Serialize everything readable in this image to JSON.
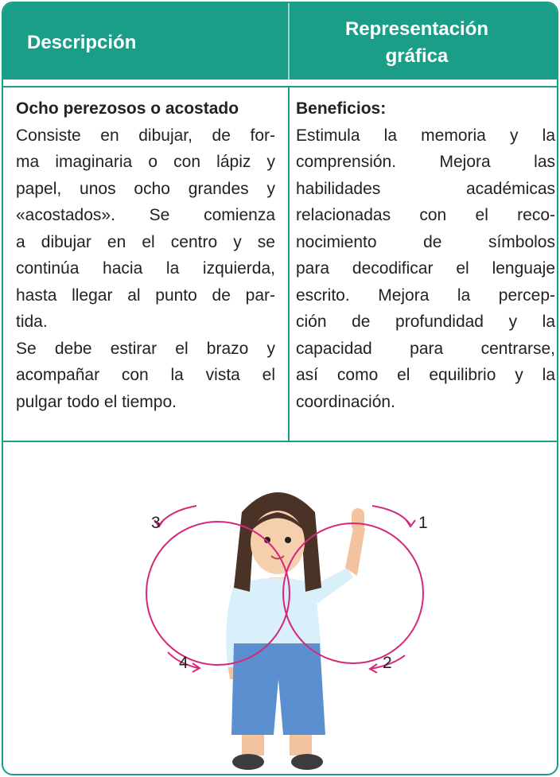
{
  "header": {
    "col1": "Descripción",
    "col2_lines": [
      "Representación",
      "gráfica"
    ]
  },
  "left": {
    "title": "Ocho perezosos o acostado",
    "paragraphs": [
      [
        "Consiste en dibujar, de for-",
        "ma imaginaria o con lápiz y",
        "papel, unos ocho grandes y",
        "«acostados». Se comienza",
        "a dibujar en el centro y se",
        "continúa hacia la izquierda,",
        "hasta llegar al punto de par-",
        "tida."
      ],
      [
        "Se debe estirar el brazo y",
        "acompañar con la vista el",
        "pulgar todo el tiempo."
      ]
    ]
  },
  "right": {
    "title": "Beneficios:",
    "paragraphs": [
      [
        "Estimula la memoria y la",
        "comprensión. Mejora las",
        "habilidades académicas",
        "relacionadas con el reco-",
        "nocimiento de símbolos",
        "para decodificar el lenguaje",
        "escrito. Mejora la percep-",
        "ción de profundidad y la",
        "capacidad para centrarse,",
        "así como el equilibrio y la",
        "coordinación."
      ]
    ]
  },
  "figure": {
    "labels": [
      "1",
      "2",
      "3",
      "4"
    ]
  }
}
